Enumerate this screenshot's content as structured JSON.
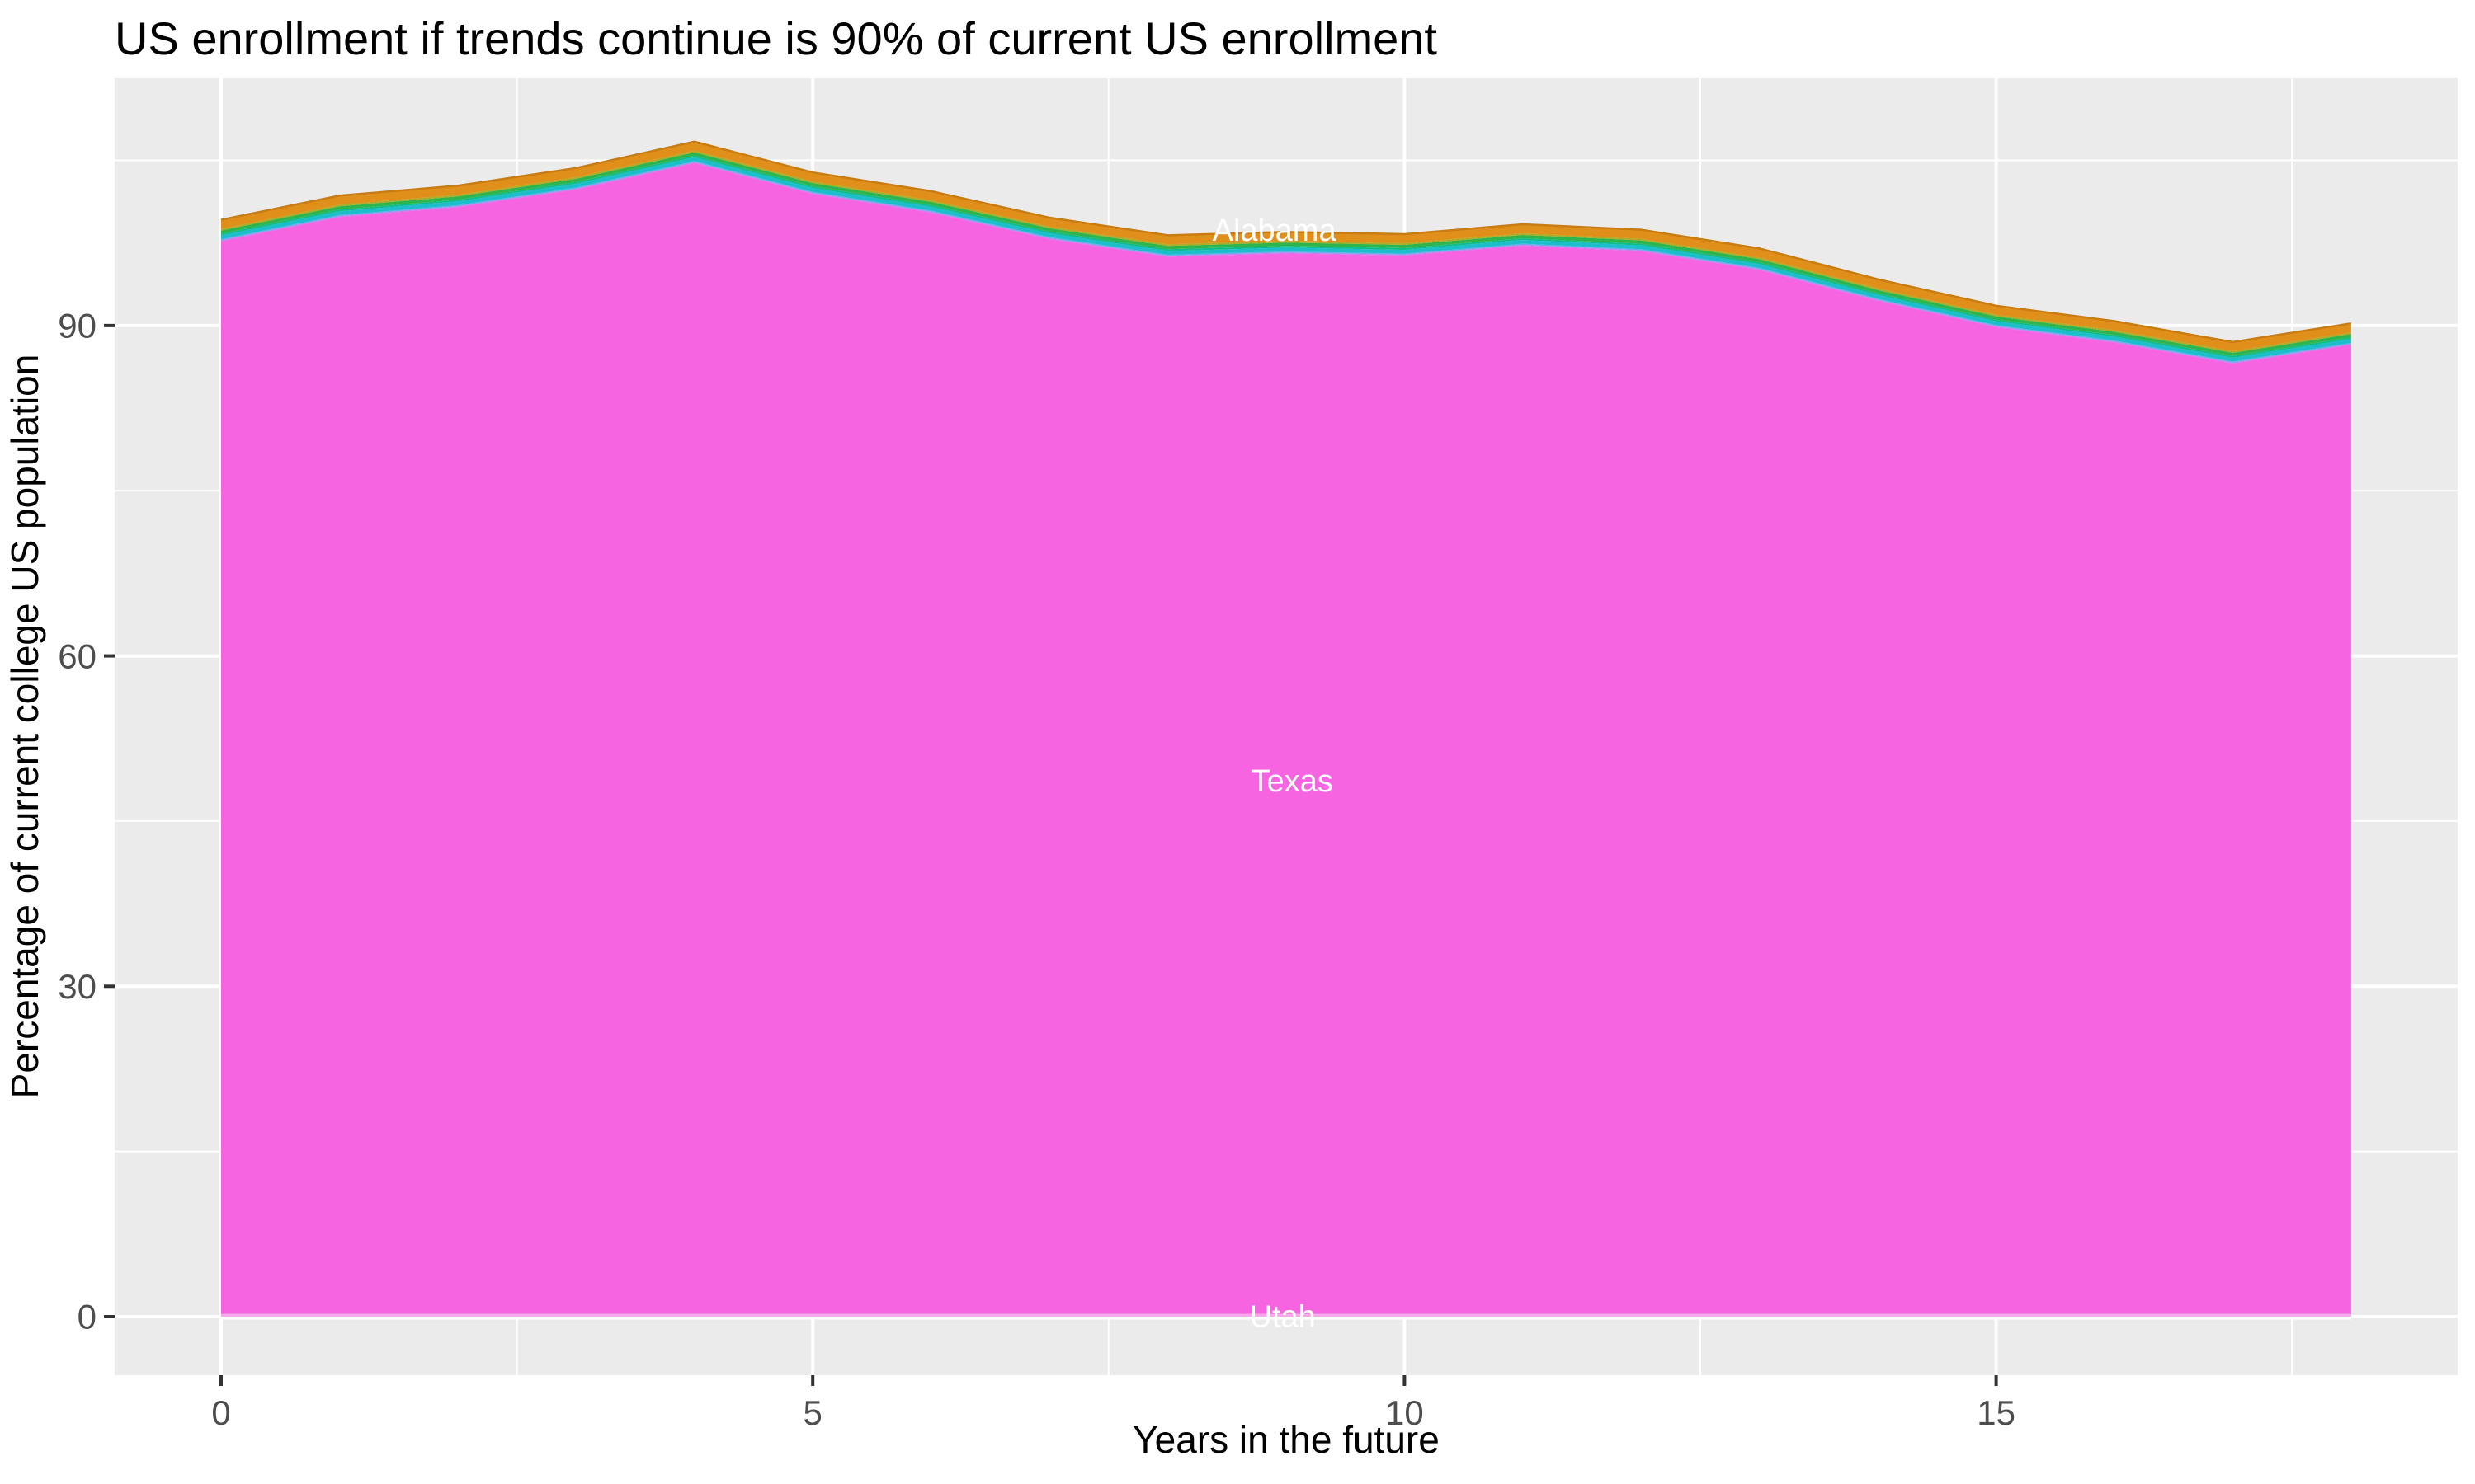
{
  "chart_data": {
    "type": "area",
    "stacked": true,
    "title": "US enrollment if trends continue is 90% of current US enrollment",
    "xlabel": "Years in the future",
    "ylabel": "Percentage of current college US population",
    "legend": "none",
    "grid": "on",
    "x": [
      0,
      1,
      2,
      3,
      4,
      5,
      6,
      7,
      8,
      9,
      10,
      11,
      12,
      13,
      14,
      15,
      16,
      17,
      18
    ],
    "total_top_percent": [
      99.6,
      101.8,
      102.7,
      104.3,
      106.7,
      103.9,
      102.2,
      99.8,
      98.2,
      98.5,
      98.3,
      99.2,
      98.7,
      97.0,
      94.2,
      91.8,
      90.4,
      88.5,
      90.2
    ],
    "x_ticks": [
      0,
      5,
      10,
      15
    ],
    "y_ticks": [
      0,
      30,
      60,
      90
    ],
    "x_minor_ticks": [
      2.5,
      7.5,
      12.5,
      17.5
    ],
    "y_minor_ticks": [
      15,
      45,
      75,
      105
    ],
    "xlim": [
      -0.9,
      18.9
    ],
    "ylim": [
      -5.3,
      112.6
    ],
    "series_bottom_to_top": [
      {
        "name": "Utah",
        "color": "#F9A9E9",
        "thickness": 0.25,
        "label": {
          "x": 8.97,
          "y": 0.07
        }
      },
      {
        "name": "Texas",
        "color": "#F664E1",
        "remainder": true,
        "label": {
          "x": 9.05,
          "y": 48.7
        }
      },
      {
        "name": "",
        "color": "#C77CEE",
        "thickness": 0.08
      },
      {
        "name": "",
        "color": "#6FA8F0",
        "thickness": 0.1
      },
      {
        "name": "",
        "color": "#1CBECB",
        "thickness": 0.34
      },
      {
        "name": "",
        "color": "#0DBD8E",
        "thickness": 0.16
      },
      {
        "name": "",
        "color": "#2FB54D",
        "thickness": 0.3
      },
      {
        "name": "",
        "color": "#AFAB24",
        "thickness": 0.15
      },
      {
        "name": "Alabama",
        "color": "#E0901A",
        "thickness": 0.82,
        "label": {
          "x": 8.9,
          "y": 98.7
        },
        "top_stroke": "#C87C12"
      }
    ]
  },
  "colors": {
    "background": "#FFFFFF",
    "panel_background": "#EBEBEB",
    "gridline": "#FFFFFF",
    "tick_mark": "#333333",
    "tick_label": "#4D4D4D",
    "title_text": "#000000",
    "area_label_text": "#FFFFFF"
  }
}
